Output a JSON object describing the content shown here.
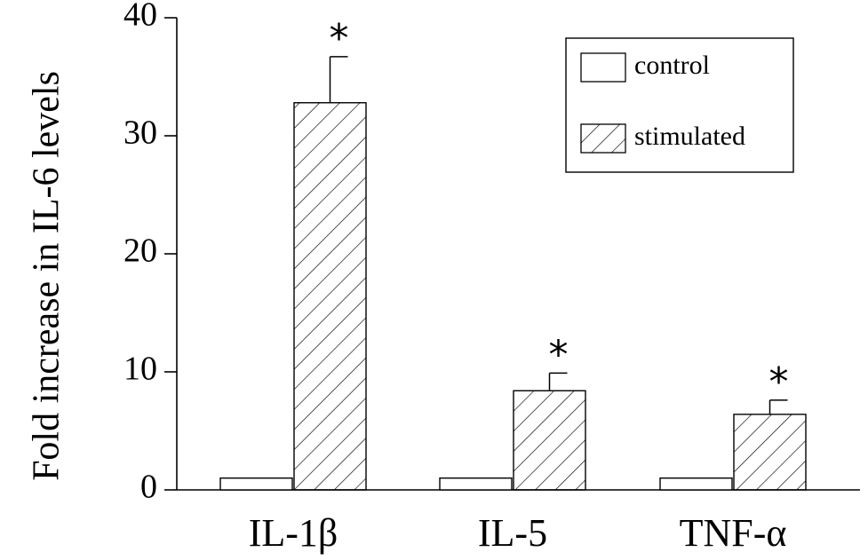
{
  "chart_data": {
    "type": "bar",
    "title": "",
    "xlabel": "",
    "ylabel": "Fold increase in IL-6 levels",
    "ylim": [
      0,
      40
    ],
    "yticks": [
      0,
      10,
      20,
      30,
      40
    ],
    "categories": [
      "IL-1β",
      "IL-5",
      "TNF-α"
    ],
    "series": [
      {
        "name": "control",
        "values": [
          1.0,
          1.0,
          1.0
        ],
        "errors": [
          0.0,
          0.0,
          0.0
        ],
        "fill": "open"
      },
      {
        "name": "stimulated",
        "values": [
          32.8,
          8.4,
          6.4
        ],
        "errors": [
          3.9,
          1.5,
          1.2
        ],
        "fill": "hatched"
      }
    ],
    "significance": [
      "*",
      "*",
      "*"
    ],
    "legend": {
      "placement": "top-right",
      "boxed": true
    },
    "grid": false,
    "colors": {
      "ink": "#000000",
      "background": "#ffffff"
    }
  }
}
